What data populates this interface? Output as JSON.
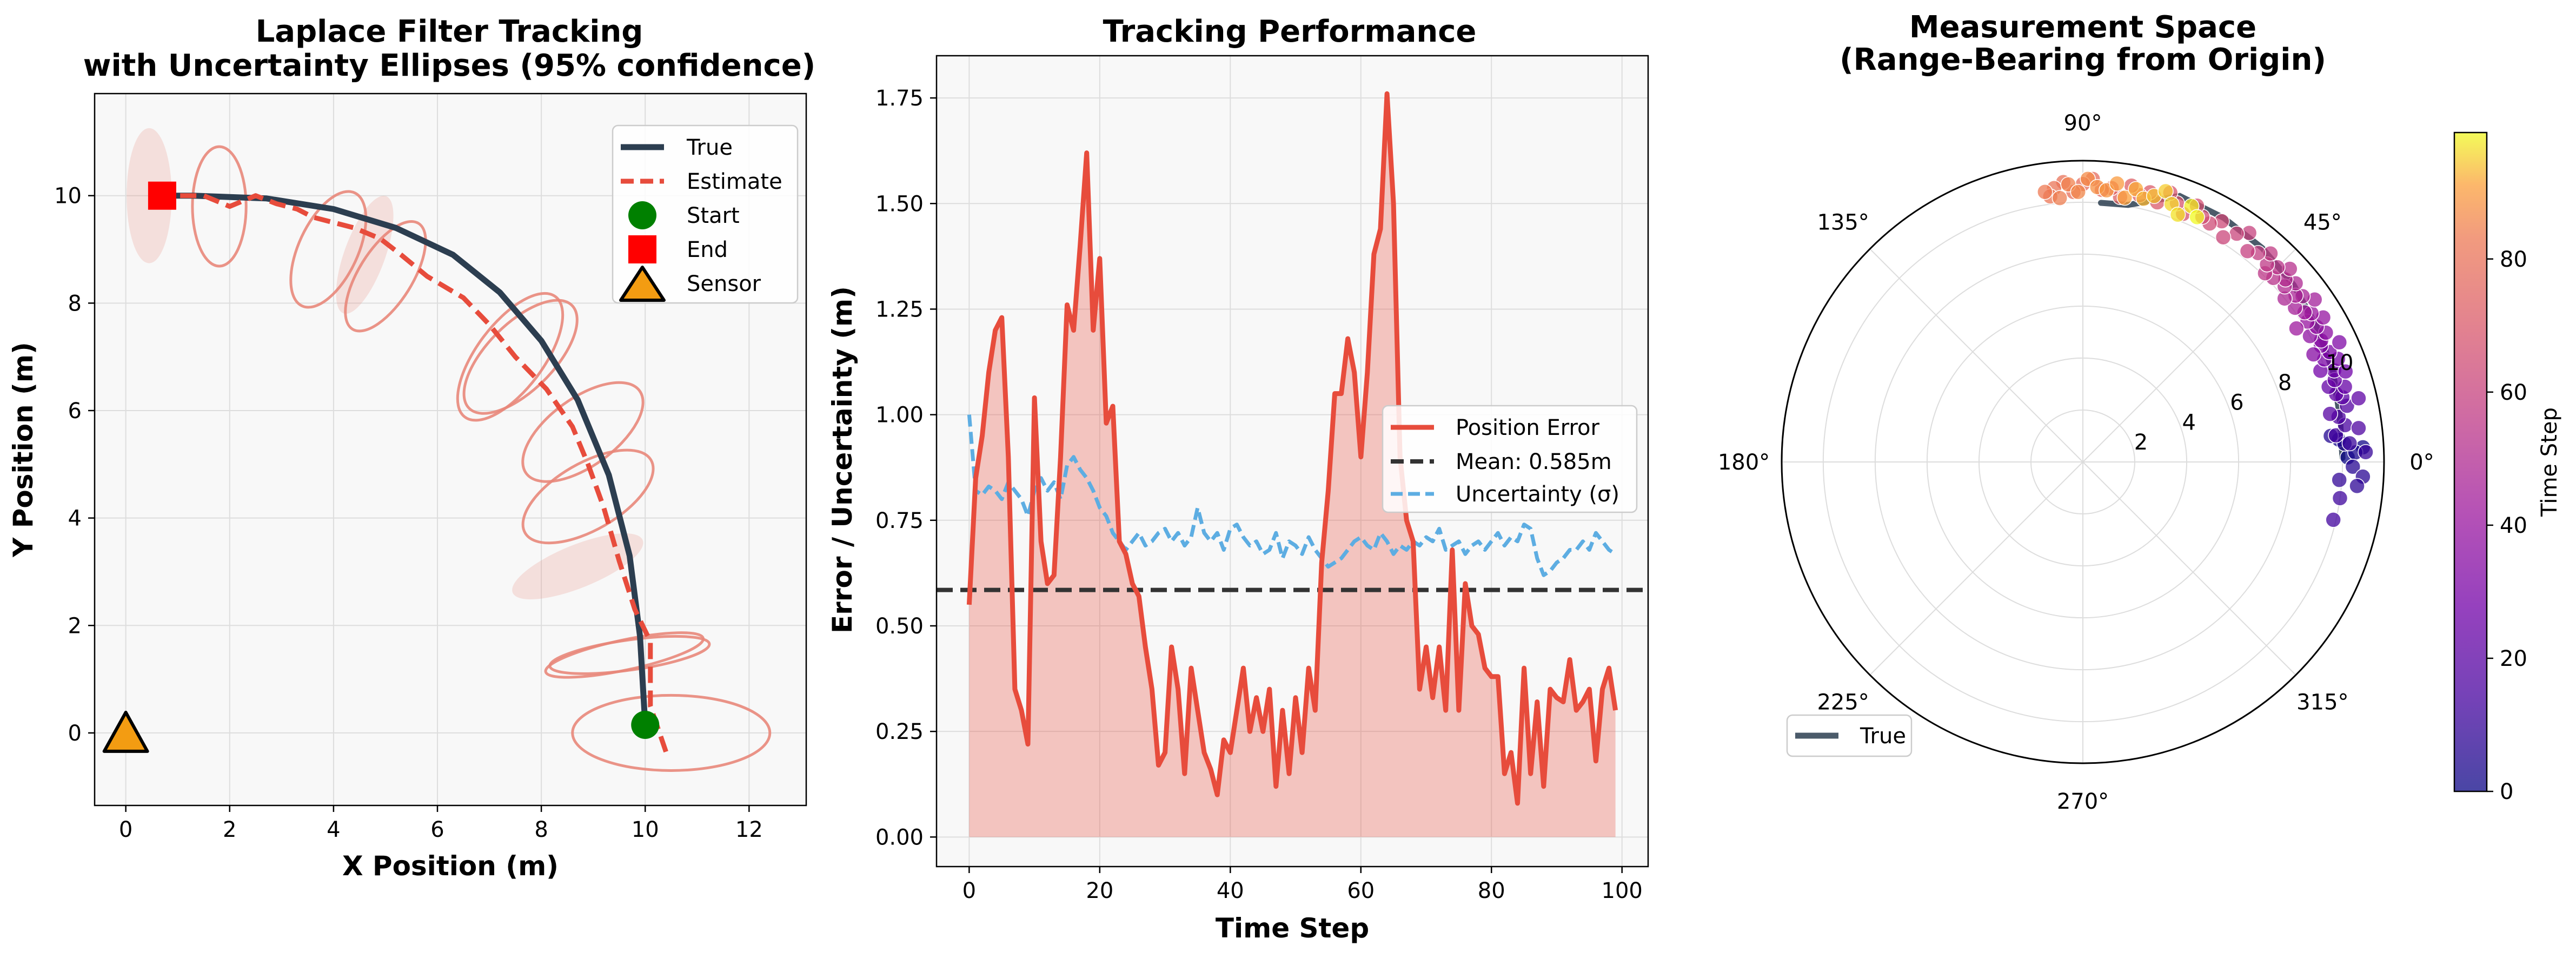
{
  "panel1": {
    "title_line1": "Laplace Filter Tracking",
    "title_line2": "with Uncertainty Ellipses (95% confidence)",
    "xlabel": "X Position (m)",
    "ylabel": "Y Position (m)",
    "legend": {
      "true": "True",
      "estimate": "Estimate",
      "start": "Start",
      "end": "End",
      "sensor": "Sensor"
    }
  },
  "panel2": {
    "title": "Tracking Performance",
    "xlabel": "Time Step",
    "ylabel": "Error / Uncertainty (m)",
    "legend": {
      "error": "Position Error",
      "mean": "Mean: 0.585m",
      "sigma": "Uncertainty (σ)"
    }
  },
  "panel3": {
    "title_line1": "Measurement Space",
    "title_line2": "(Range-Bearing from Origin)",
    "colorbar_label": "Time Step",
    "legend_true": "True"
  },
  "colors": {
    "true": "#2c3e50",
    "estimate": "#e74c3c",
    "ellipse": "#e8877a",
    "start": "#008000",
    "end": "#ff0000",
    "sensor": "#f39c12",
    "uncertainty": "#5dade2",
    "mean": "#333333"
  },
  "chart_data": [
    {
      "type": "line",
      "title": "Laplace Filter Tracking with Uncertainty Ellipses (95% confidence)",
      "xlabel": "X Position (m)",
      "ylabel": "Y Position (m)",
      "xlim": [
        -0.6,
        13.1
      ],
      "ylim": [
        -1.35,
        11.9
      ],
      "xticks": [
        0,
        2,
        4,
        6,
        8,
        10,
        12
      ],
      "yticks": [
        0,
        2,
        4,
        6,
        8,
        10
      ],
      "grid": true,
      "legend_position": "upper right",
      "true_path": {
        "x": [
          10.0,
          9.9,
          9.7,
          9.3,
          8.7,
          8.0,
          7.2,
          6.3,
          5.2,
          4.0,
          2.7,
          1.3,
          0.7
        ],
        "y": [
          0.15,
          1.8,
          3.3,
          4.8,
          6.2,
          7.3,
          8.2,
          8.9,
          9.4,
          9.75,
          9.95,
          10.0,
          10.0
        ]
      },
      "estimate_path": {
        "x": [
          10.4,
          10.1,
          10.1,
          9.8,
          9.5,
          9.2,
          8.9,
          8.6,
          8.1,
          7.5,
          7.0,
          6.5,
          5.8,
          5.3,
          4.9,
          4.4,
          4.0,
          3.6,
          3.3,
          2.9,
          2.5,
          2.0,
          1.5,
          1.0,
          0.7
        ],
        "y": [
          -0.35,
          0.5,
          1.7,
          2.3,
          3.2,
          4.2,
          5.0,
          5.7,
          6.4,
          7.0,
          7.6,
          8.1,
          8.5,
          8.9,
          9.2,
          9.4,
          9.5,
          9.6,
          9.75,
          9.85,
          10.0,
          9.8,
          10.0,
          10.0,
          10.0
        ]
      },
      "uncertainty_ellipses": [
        {
          "cx": 10.5,
          "cy": 0.0,
          "rx": 1.9,
          "ry": 0.7,
          "rot": 0,
          "filled": false
        },
        {
          "cx": 9.6,
          "cy": 1.45,
          "rx": 1.55,
          "ry": 0.28,
          "rot": 12,
          "filled": false
        },
        {
          "cx": 9.7,
          "cy": 1.45,
          "rx": 1.55,
          "ry": 0.28,
          "rot": 8,
          "filled": false
        },
        {
          "cx": 8.7,
          "cy": 3.1,
          "rx": 1.35,
          "ry": 0.4,
          "rot": 22,
          "filled": true
        },
        {
          "cx": 8.9,
          "cy": 4.4,
          "rx": 1.4,
          "ry": 0.62,
          "rot": 30,
          "filled": false
        },
        {
          "cx": 8.8,
          "cy": 5.6,
          "rx": 1.35,
          "ry": 0.63,
          "rot": 36,
          "filled": false
        },
        {
          "cx": 7.6,
          "cy": 7.0,
          "rx": 1.4,
          "ry": 0.62,
          "rot": 45,
          "filled": false
        },
        {
          "cx": 7.4,
          "cy": 7.0,
          "rx": 1.45,
          "ry": 0.62,
          "rot": 53,
          "filled": false
        },
        {
          "cx": 5.0,
          "cy": 8.5,
          "rx": 1.2,
          "ry": 0.5,
          "rot": 58,
          "filled": false
        },
        {
          "cx": 4.6,
          "cy": 8.9,
          "rx": 1.2,
          "ry": 0.38,
          "rot": 70,
          "filled": true
        },
        {
          "cx": 3.9,
          "cy": 9.0,
          "rx": 1.2,
          "ry": 0.55,
          "rot": 65,
          "filled": false
        },
        {
          "cx": 1.8,
          "cy": 9.8,
          "rx": 1.15,
          "ry": 0.5,
          "rot": 90,
          "filled": false
        },
        {
          "cx": 0.45,
          "cy": 10.0,
          "rx": 1.3,
          "ry": 0.42,
          "rot": 90,
          "filled": true
        }
      ],
      "start": [
        10.0,
        0.15
      ],
      "end": [
        0.7,
        10.0
      ],
      "sensor": [
        0.0,
        0.0
      ]
    },
    {
      "type": "line",
      "title": "Tracking Performance",
      "xlabel": "Time Step",
      "ylabel": "Error / Uncertainty (m)",
      "xlim": [
        -5,
        104
      ],
      "ylim": [
        -0.07,
        1.85
      ],
      "xticks": [
        0,
        20,
        40,
        60,
        80,
        100
      ],
      "yticks": [
        0.0,
        0.25,
        0.5,
        0.75,
        1.0,
        1.25,
        1.5,
        1.75
      ],
      "grid": true,
      "legend_position": "center right",
      "series": [
        {
          "name": "Position Error",
          "x": [
            0,
            1,
            2,
            3,
            4,
            5,
            6,
            7,
            8,
            9,
            10,
            11,
            12,
            13,
            14,
            15,
            16,
            17,
            18,
            19,
            20,
            21,
            22,
            23,
            24,
            25,
            26,
            27,
            28,
            29,
            30,
            31,
            32,
            33,
            34,
            35,
            36,
            37,
            38,
            39,
            40,
            41,
            42,
            43,
            44,
            45,
            46,
            47,
            48,
            49,
            50,
            51,
            52,
            53,
            54,
            55,
            56,
            57,
            58,
            59,
            60,
            61,
            62,
            63,
            64,
            65,
            66,
            67,
            68,
            69,
            70,
            71,
            72,
            73,
            74,
            75,
            76,
            77,
            78,
            79,
            80,
            81,
            82,
            83,
            84,
            85,
            86,
            87,
            88,
            89,
            90,
            91,
            92,
            93,
            94,
            95,
            96,
            97,
            98,
            99
          ],
          "values": [
            0.55,
            0.85,
            0.95,
            1.1,
            1.2,
            1.23,
            0.9,
            0.35,
            0.3,
            0.22,
            1.04,
            0.7,
            0.6,
            0.62,
            0.9,
            1.26,
            1.2,
            1.4,
            1.62,
            1.2,
            1.37,
            0.98,
            1.02,
            0.7,
            0.67,
            0.6,
            0.57,
            0.45,
            0.35,
            0.17,
            0.2,
            0.45,
            0.35,
            0.15,
            0.4,
            0.3,
            0.2,
            0.16,
            0.1,
            0.23,
            0.2,
            0.3,
            0.4,
            0.25,
            0.33,
            0.25,
            0.35,
            0.12,
            0.3,
            0.15,
            0.33,
            0.2,
            0.4,
            0.3,
            0.65,
            0.82,
            1.05,
            1.05,
            1.18,
            1.1,
            0.9,
            1.1,
            1.38,
            1.44,
            1.76,
            1.5,
            0.9,
            0.75,
            0.7,
            0.35,
            0.45,
            0.33,
            0.45,
            0.3,
            0.68,
            0.3,
            0.6,
            0.5,
            0.48,
            0.4,
            0.38,
            0.38,
            0.15,
            0.2,
            0.08,
            0.4,
            0.15,
            0.32,
            0.12,
            0.35,
            0.33,
            0.32,
            0.42,
            0.3,
            0.32,
            0.35,
            0.18,
            0.35,
            0.4,
            0.3
          ]
        },
        {
          "name": "Mean: 0.585m",
          "value": 0.585
        },
        {
          "name": "Uncertainty (σ)",
          "x": [
            0,
            1,
            2,
            3,
            4,
            5,
            6,
            7,
            8,
            9,
            10,
            11,
            12,
            13,
            14,
            15,
            16,
            17,
            18,
            19,
            20,
            21,
            22,
            23,
            24,
            25,
            26,
            27,
            28,
            29,
            30,
            31,
            32,
            33,
            34,
            35,
            36,
            37,
            38,
            39,
            40,
            41,
            42,
            43,
            44,
            45,
            46,
            47,
            48,
            49,
            50,
            51,
            52,
            53,
            54,
            55,
            56,
            57,
            58,
            59,
            60,
            61,
            62,
            63,
            64,
            65,
            66,
            67,
            68,
            69,
            70,
            71,
            72,
            73,
            74,
            75,
            76,
            77,
            78,
            79,
            80,
            81,
            82,
            83,
            84,
            85,
            86,
            87,
            88,
            89,
            90,
            91,
            92,
            93,
            94,
            95,
            96,
            97,
            98,
            99
          ],
          "values": [
            1.0,
            0.82,
            0.81,
            0.83,
            0.82,
            0.8,
            0.84,
            0.82,
            0.8,
            0.76,
            0.82,
            0.85,
            0.82,
            0.84,
            0.8,
            0.88,
            0.9,
            0.87,
            0.85,
            0.82,
            0.78,
            0.76,
            0.72,
            0.7,
            0.68,
            0.7,
            0.72,
            0.69,
            0.7,
            0.72,
            0.73,
            0.7,
            0.72,
            0.69,
            0.71,
            0.78,
            0.72,
            0.7,
            0.72,
            0.68,
            0.73,
            0.74,
            0.71,
            0.69,
            0.7,
            0.67,
            0.68,
            0.72,
            0.66,
            0.7,
            0.69,
            0.67,
            0.71,
            0.68,
            0.66,
            0.64,
            0.65,
            0.66,
            0.68,
            0.7,
            0.71,
            0.69,
            0.68,
            0.72,
            0.7,
            0.67,
            0.69,
            0.68,
            0.7,
            0.69,
            0.71,
            0.7,
            0.73,
            0.68,
            0.69,
            0.7,
            0.67,
            0.69,
            0.7,
            0.68,
            0.7,
            0.72,
            0.69,
            0.71,
            0.7,
            0.74,
            0.73,
            0.66,
            0.62,
            0.63,
            0.65,
            0.66,
            0.68,
            0.68,
            0.7,
            0.68,
            0.72,
            0.7,
            0.68,
            0.67
          ]
        }
      ]
    },
    {
      "type": "scatter",
      "projection": "polar",
      "title": "Measurement Space (Range-Bearing from Origin)",
      "theta_labels": [
        "0°",
        "45°",
        "90°",
        "135°",
        "180°",
        "225°",
        "270°",
        "315°"
      ],
      "r_ticks": [
        2,
        4,
        6,
        8,
        10
      ],
      "r_max": 11.6,
      "colorbar": {
        "label": "Time Step",
        "range": [
          0,
          99
        ],
        "ticks": [
          0,
          20,
          40,
          60,
          80
        ],
        "colormap": "plasma"
      },
      "true_curve": {
        "theta_deg": [
          0.9,
          10,
          20,
          30,
          40,
          50,
          60,
          70,
          80,
          86
        ],
        "r": [
          10.0,
          10.05,
          10.25,
          10.4,
          10.6,
          10.75,
          10.85,
          10.9,
          10.05,
          10.0
        ]
      },
      "measurements": {
        "theta_deg": [
          1,
          3,
          5,
          2,
          4,
          6,
          -1,
          -3,
          -5,
          -4,
          2,
          4,
          -8,
          -13,
          6,
          8,
          7,
          10,
          12,
          11,
          14,
          13,
          15,
          17,
          16,
          18,
          20,
          19,
          21,
          22,
          23,
          24,
          25,
          26,
          25,
          27,
          28,
          29,
          30,
          31,
          32,
          33,
          32,
          34,
          35,
          36,
          37,
          38,
          39,
          40,
          41,
          42,
          43,
          44,
          45,
          46,
          47,
          48,
          50,
          52,
          54,
          56,
          58,
          60,
          62,
          64,
          66,
          68,
          70,
          72,
          74,
          76,
          78,
          80,
          82,
          84,
          86,
          88,
          90,
          92,
          94,
          96,
          97,
          98,
          95,
          93,
          91,
          89,
          87,
          85,
          83,
          81,
          79,
          77,
          75,
          73,
          71,
          69,
          67,
          65
        ],
        "r": [
          10.2,
          10.8,
          9.9,
          10.5,
          10.1,
          9.6,
          10.4,
          10.8,
          10.6,
          9.9,
          10.9,
          10.3,
          10.0,
          9.9,
          9.8,
          10.2,
          10.7,
          10.0,
          10.4,
          9.7,
          10.3,
          10.9,
          10.1,
          9.9,
          10.5,
          10.2,
          10.3,
          10.7,
          9.8,
          10.6,
          10.1,
          10.4,
          10.9,
          10.2,
          9.8,
          10.3,
          10.6,
          10.0,
          10.4,
          10.8,
          10.2,
          10.5,
          9.7,
          10.3,
          10.9,
          10.1,
          10.6,
          10.4,
          10.0,
          10.7,
          10.3,
          10.5,
          10.9,
          10.2,
          10.6,
          10.1,
          10.4,
          10.8,
          10.5,
          10.3,
          10.9,
          10.6,
          10.2,
          10.7,
          10.4,
          10.5,
          10.8,
          10.3,
          10.6,
          10.9,
          10.4,
          10.7,
          10.5,
          10.8,
          10.3,
          10.6,
          10.5,
          10.9,
          10.7,
          10.4,
          10.8,
          10.6,
          10.3,
          10.5,
          10.2,
          10.7,
          10.4,
          10.9,
          10.6,
          10.5,
          10.8,
          10.3,
          10.7,
          10.4,
          10.6,
          10.9,
          10.5,
          10.2,
          10.7,
          10.4
        ],
        "time_step": [
          0,
          1,
          2,
          3,
          4,
          5,
          6,
          7,
          8,
          9,
          10,
          11,
          12,
          13,
          14,
          15,
          16,
          17,
          18,
          19,
          20,
          21,
          22,
          23,
          24,
          25,
          26,
          27,
          28,
          29,
          30,
          31,
          32,
          33,
          34,
          35,
          36,
          37,
          38,
          39,
          40,
          41,
          42,
          43,
          44,
          45,
          46,
          47,
          48,
          49,
          50,
          51,
          52,
          53,
          54,
          55,
          56,
          57,
          58,
          59,
          60,
          61,
          62,
          63,
          64,
          65,
          66,
          67,
          68,
          69,
          70,
          71,
          72,
          73,
          74,
          75,
          76,
          77,
          78,
          79,
          80,
          81,
          82,
          83,
          84,
          85,
          86,
          87,
          88,
          89,
          90,
          91,
          92,
          93,
          94,
          95,
          96,
          97,
          98,
          99
        ]
      }
    }
  ]
}
